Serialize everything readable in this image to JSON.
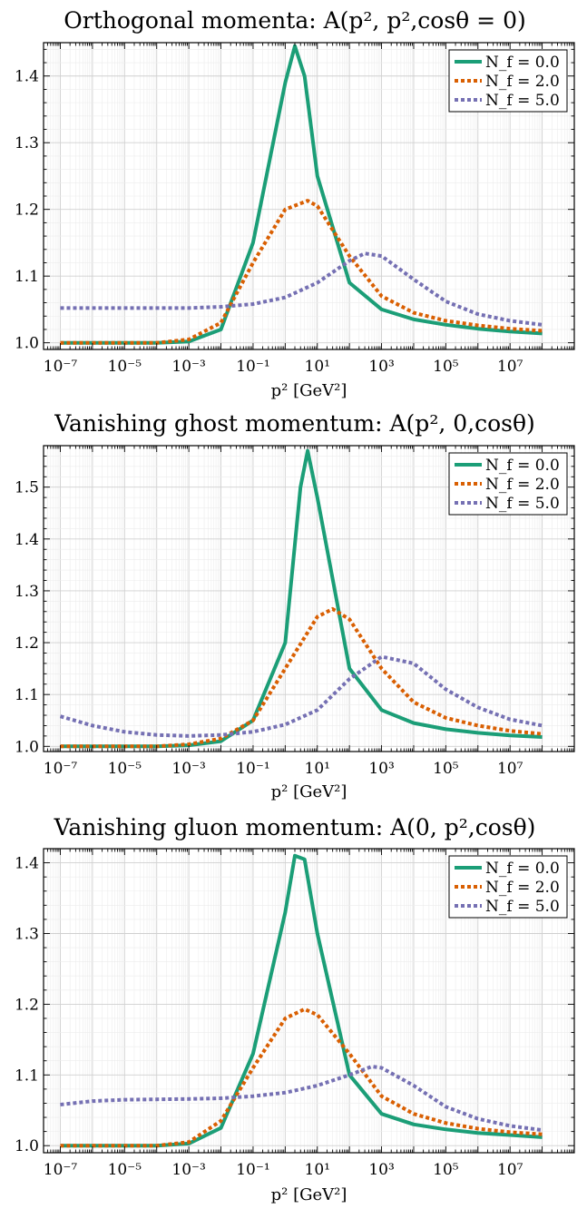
{
  "figure": {
    "panels": [
      {
        "title": "Orthogonal momenta: A(p², p²,cosθ = 0)",
        "xlabel": "p² [GeV²]"
      },
      {
        "title": "Vanishing ghost momentum: A(p², 0,cosθ)",
        "xlabel": "p² [GeV²]"
      },
      {
        "title": "Vanishing gluon momentum: A(0, p²,cosθ)",
        "xlabel": "p² [GeV²]"
      }
    ]
  },
  "series_style": [
    {
      "name": "N_f = 0.0",
      "color": "#1b9e77",
      "dash": "solid"
    },
    {
      "name": "N_f = 2.0",
      "color": "#d95f02",
      "dash": "dotted"
    },
    {
      "name": "N_f = 5.0",
      "color": "#7570b3",
      "dash": "dotted"
    }
  ],
  "chart_data": [
    {
      "type": "line",
      "title": "Orthogonal momenta: A(p², p²,cosθ = 0)",
      "xlabel": "p² [GeV²]",
      "ylabel": "",
      "xscale": "log",
      "xlim": [
        3e-08,
        1000000000.0
      ],
      "ylim": [
        0.99,
        1.45
      ],
      "xticks": [
        "10⁻⁷",
        "10⁻⁵",
        "10⁻³",
        "10⁻¹",
        "10¹",
        "10³",
        "10⁵",
        "10⁷"
      ],
      "yticks": [
        "1.0",
        "1.1",
        "1.2",
        "1.3",
        "1.4"
      ],
      "grid": true,
      "legend": "top-right",
      "series": [
        {
          "name": "N_f = 0.0",
          "x": [
            1e-07,
            1e-05,
            0.0001,
            0.001,
            0.01,
            0.1,
            1,
            2,
            4,
            10.0,
            100.0,
            1000.0,
            10000.0,
            100000.0,
            1000000.0,
            10000000.0,
            100000000.0
          ],
          "y": [
            1.0,
            1.0,
            1.0,
            1.002,
            1.02,
            1.15,
            1.39,
            1.445,
            1.4,
            1.25,
            1.09,
            1.05,
            1.035,
            1.027,
            1.021,
            1.017,
            1.014
          ]
        },
        {
          "name": "N_f = 2.0",
          "x": [
            1e-07,
            1e-05,
            0.0001,
            0.001,
            0.01,
            0.1,
            1,
            5,
            10.0,
            100.0,
            1000.0,
            10000.0,
            100000.0,
            1000000.0,
            10000000.0,
            100000000.0
          ],
          "y": [
            1.0,
            1.0,
            1.0,
            1.005,
            1.03,
            1.12,
            1.2,
            1.213,
            1.205,
            1.13,
            1.07,
            1.045,
            1.033,
            1.026,
            1.021,
            1.018
          ]
        },
        {
          "name": "N_f = 5.0",
          "x": [
            1e-07,
            1e-05,
            0.001,
            0.01,
            0.1,
            1,
            10.0,
            100.0,
            300.0,
            1000.0,
            10000.0,
            100000.0,
            1000000.0,
            10000000.0,
            100000000.0
          ],
          "y": [
            1.052,
            1.052,
            1.052,
            1.054,
            1.058,
            1.068,
            1.09,
            1.123,
            1.134,
            1.13,
            1.095,
            1.062,
            1.043,
            1.033,
            1.027
          ]
        }
      ]
    },
    {
      "type": "line",
      "title": "Vanishing ghost momentum: A(p², 0,cosθ)",
      "xlabel": "p² [GeV²]",
      "ylabel": "",
      "xscale": "log",
      "xlim": [
        3e-08,
        1000000000.0
      ],
      "ylim": [
        0.99,
        1.58
      ],
      "xticks": [
        "10⁻⁷",
        "10⁻⁵",
        "10⁻³",
        "10⁻¹",
        "10¹",
        "10³",
        "10⁵",
        "10⁷"
      ],
      "yticks": [
        "1.0",
        "1.1",
        "1.2",
        "1.3",
        "1.4",
        "1.5"
      ],
      "grid": true,
      "legend": "top-right",
      "series": [
        {
          "name": "N_f = 0.0",
          "x": [
            1e-07,
            1e-05,
            0.0001,
            0.001,
            0.01,
            0.1,
            1,
            3,
            5,
            10.0,
            100.0,
            1000.0,
            10000.0,
            100000.0,
            1000000.0,
            10000000.0,
            100000000.0
          ],
          "y": [
            1.0,
            1.0,
            1.0,
            1.002,
            1.01,
            1.05,
            1.2,
            1.5,
            1.57,
            1.48,
            1.15,
            1.07,
            1.045,
            1.033,
            1.026,
            1.021,
            1.018
          ]
        },
        {
          "name": "N_f = 2.0",
          "x": [
            1e-07,
            1e-05,
            0.0001,
            0.001,
            0.01,
            0.1,
            1,
            10.0,
            30.0,
            100.0,
            1000.0,
            10000.0,
            100000.0,
            1000000.0,
            10000000.0,
            100000000.0
          ],
          "y": [
            1.0,
            1.0,
            1.0,
            1.004,
            1.015,
            1.05,
            1.15,
            1.25,
            1.265,
            1.245,
            1.15,
            1.085,
            1.055,
            1.04,
            1.03,
            1.024
          ]
        },
        {
          "name": "N_f = 5.0",
          "x": [
            1e-07,
            1e-06,
            1e-05,
            0.0001,
            0.001,
            0.01,
            0.1,
            1,
            10.0,
            100.0,
            1000.0,
            10000.0,
            100000.0,
            1000000.0,
            10000000.0,
            100000000.0
          ],
          "y": [
            1.058,
            1.04,
            1.028,
            1.022,
            1.02,
            1.022,
            1.028,
            1.042,
            1.07,
            1.13,
            1.173,
            1.16,
            1.11,
            1.075,
            1.052,
            1.04
          ]
        }
      ]
    },
    {
      "type": "line",
      "title": "Vanishing gluon momentum: A(0, p²,cosθ)",
      "xlabel": "p² [GeV²]",
      "ylabel": "",
      "xscale": "log",
      "xlim": [
        3e-08,
        1000000000.0
      ],
      "ylim": [
        0.99,
        1.42
      ],
      "xticks": [
        "10⁻⁷",
        "10⁻⁵",
        "10⁻³",
        "10⁻¹",
        "10¹",
        "10³",
        "10⁵",
        "10⁷"
      ],
      "yticks": [
        "1.0",
        "1.1",
        "1.2",
        "1.3",
        "1.4"
      ],
      "grid": true,
      "legend": "top-right",
      "series": [
        {
          "name": "N_f = 0.0",
          "x": [
            1e-07,
            1e-05,
            0.0001,
            0.001,
            0.01,
            0.1,
            1,
            2,
            4,
            10.0,
            100.0,
            1000.0,
            10000.0,
            100000.0,
            1000000.0,
            10000000.0,
            100000000.0
          ],
          "y": [
            1.0,
            1.0,
            1.0,
            1.003,
            1.025,
            1.13,
            1.33,
            1.41,
            1.405,
            1.3,
            1.1,
            1.045,
            1.03,
            1.023,
            1.018,
            1.015,
            1.012
          ]
        },
        {
          "name": "N_f = 2.0",
          "x": [
            1e-07,
            1e-05,
            0.0001,
            0.001,
            0.01,
            0.1,
            1,
            4,
            10.0,
            100.0,
            1000.0,
            10000.0,
            100000.0,
            1000000.0,
            10000000.0,
            100000000.0
          ],
          "y": [
            1.0,
            1.0,
            1.0,
            1.005,
            1.035,
            1.11,
            1.18,
            1.193,
            1.185,
            1.13,
            1.07,
            1.045,
            1.032,
            1.024,
            1.019,
            1.016
          ]
        },
        {
          "name": "N_f = 5.0",
          "x": [
            1e-07,
            1e-06,
            1e-05,
            0.001,
            0.01,
            0.1,
            1,
            10.0,
            100.0,
            500.0,
            1000.0,
            10000.0,
            100000.0,
            1000000.0,
            10000000.0,
            100000000.0
          ],
          "y": [
            1.058,
            1.063,
            1.065,
            1.066,
            1.067,
            1.07,
            1.075,
            1.085,
            1.1,
            1.112,
            1.11,
            1.085,
            1.055,
            1.038,
            1.028,
            1.022
          ]
        }
      ]
    }
  ]
}
